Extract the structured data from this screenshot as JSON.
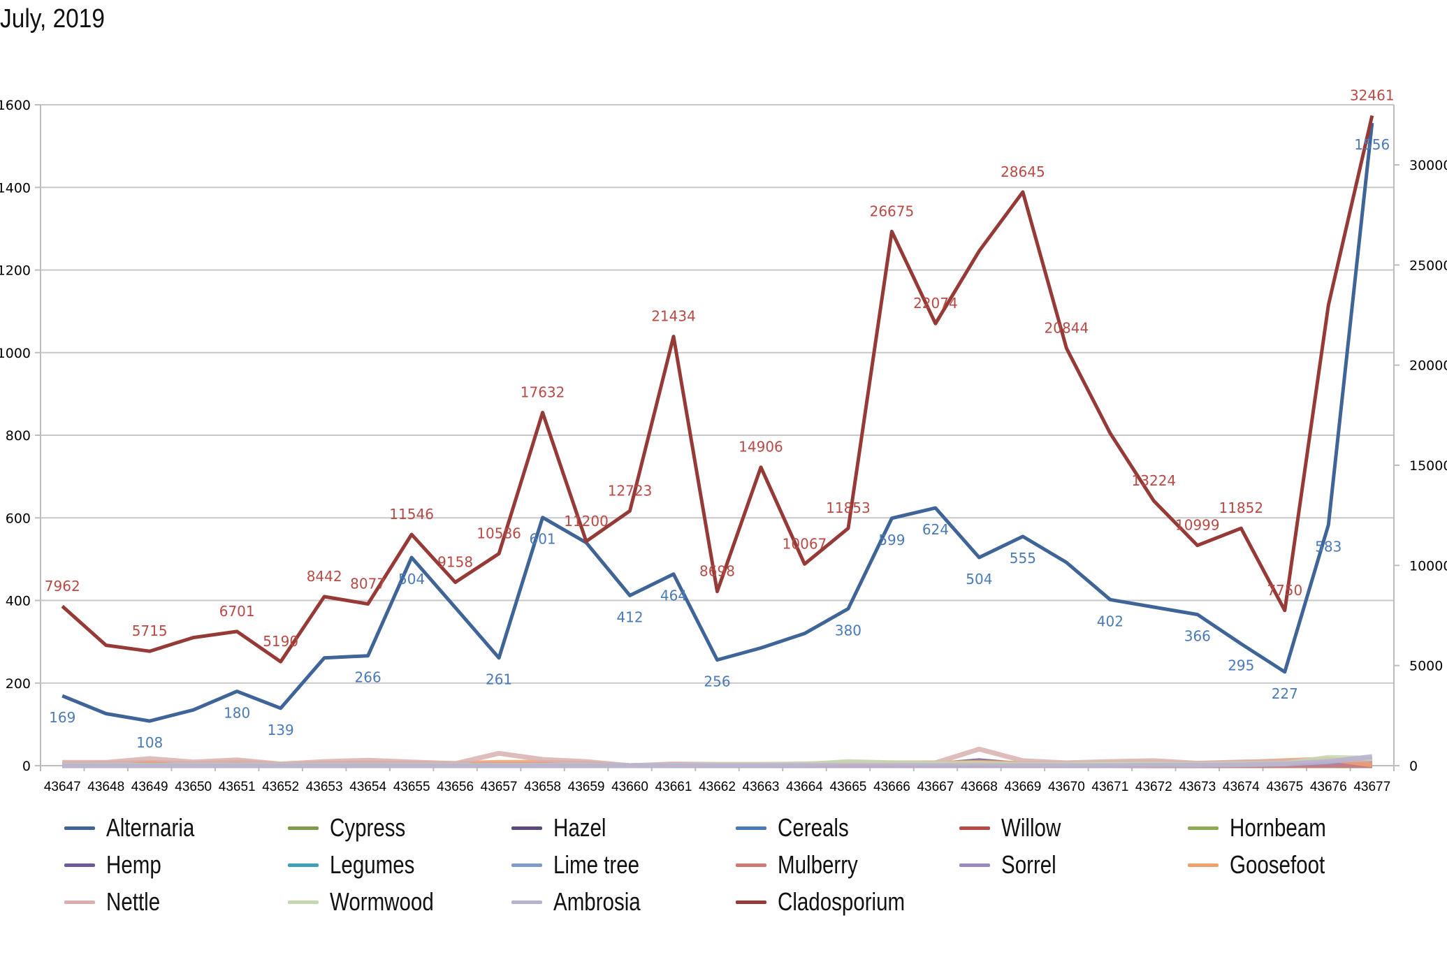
{
  "chart_data": {
    "type": "line",
    "title": "July, 2019",
    "xlabel": "",
    "ylabel": "",
    "y2label": "",
    "categories": [
      "43647",
      "43648",
      "43649",
      "43650",
      "43651",
      "43652",
      "43653",
      "43654",
      "43655",
      "43656",
      "43657",
      "43658",
      "43659",
      "43660",
      "43661",
      "43662",
      "43663",
      "43664",
      "43665",
      "43666",
      "43667",
      "43668",
      "43669",
      "43670",
      "43671",
      "43672",
      "43673",
      "43674",
      "43675",
      "43676",
      "43677"
    ],
    "y_axis": {
      "min": 0,
      "max": 1600,
      "ticks": [
        0,
        200,
        400,
        600,
        800,
        1000,
        1200,
        1400,
        1600
      ]
    },
    "y2_axis": {
      "min": 0,
      "max": 33000,
      "ticks": [
        0,
        5000,
        10000,
        15000,
        20000,
        25000,
        30000
      ]
    },
    "grid": true,
    "legend_position": "bottom",
    "series": [
      {
        "name": "Alternaria",
        "axis": "left",
        "color": "#3f6497",
        "labels": true,
        "label_color": "#4a7ab8",
        "values": [
          169,
          126,
          108,
          135,
          180,
          139,
          261,
          266,
          504,
          383,
          261,
          601,
          540,
          412,
          464,
          256,
          285,
          320,
          380,
          599,
          624,
          504,
          555,
          492,
          402,
          384,
          366,
          295,
          227,
          583,
          1556
        ],
        "label_values": [
          169,
          null,
          108,
          null,
          180,
          139,
          null,
          266,
          504,
          null,
          261,
          601,
          null,
          412,
          464,
          256,
          null,
          null,
          380,
          599,
          624,
          504,
          555,
          null,
          402,
          null,
          366,
          295,
          227,
          583,
          1556
        ]
      },
      {
        "name": "Cypress",
        "axis": "left",
        "color": "#7f9a48",
        "values": [
          2,
          2,
          2,
          2,
          2,
          1,
          1,
          1,
          1,
          1,
          1,
          1,
          1,
          0,
          1,
          1,
          1,
          1,
          2,
          2,
          2,
          2,
          1,
          1,
          1,
          1,
          1,
          1,
          2,
          2,
          2
        ]
      },
      {
        "name": "Hazel",
        "axis": "left",
        "color": "#5a4a7e",
        "values": [
          0,
          0,
          0,
          0,
          0,
          0,
          0,
          0,
          0,
          0,
          0,
          0,
          0,
          0,
          0,
          0,
          0,
          0,
          0,
          0,
          0,
          0,
          0,
          0,
          0,
          0,
          0,
          0,
          0,
          0,
          0
        ]
      },
      {
        "name": "Cereals",
        "axis": "left",
        "color": "#4a7ab8",
        "values": [
          2,
          3,
          3,
          2,
          3,
          1,
          2,
          3,
          2,
          2,
          2,
          2,
          1,
          0,
          1,
          1,
          1,
          1,
          2,
          2,
          2,
          3,
          2,
          2,
          2,
          3,
          2,
          2,
          3,
          3,
          4
        ]
      },
      {
        "name": "Willow",
        "axis": "left",
        "color": "#b84a45",
        "values": [
          1,
          1,
          1,
          1,
          1,
          0,
          1,
          1,
          1,
          0,
          1,
          1,
          1,
          0,
          0,
          0,
          0,
          0,
          1,
          1,
          1,
          2,
          1,
          1,
          1,
          1,
          1,
          1,
          1,
          2,
          8
        ]
      },
      {
        "name": "Hornbeam",
        "axis": "left",
        "color": "#8faa55",
        "values": [
          0,
          0,
          0,
          0,
          0,
          0,
          0,
          0,
          0,
          0,
          0,
          0,
          0,
          0,
          0,
          0,
          0,
          0,
          0,
          0,
          0,
          0,
          0,
          0,
          0,
          0,
          0,
          0,
          0,
          0,
          0
        ]
      },
      {
        "name": "Hemp",
        "axis": "left",
        "color": "#6e5a96",
        "values": [
          2,
          2,
          3,
          2,
          4,
          1,
          3,
          4,
          3,
          2,
          2,
          3,
          3,
          0,
          1,
          1,
          1,
          1,
          3,
          3,
          3,
          12,
          3,
          2,
          3,
          3,
          2,
          3,
          3,
          5,
          14
        ]
      },
      {
        "name": "Legumes",
        "axis": "left",
        "color": "#3fa0b8",
        "values": [
          0,
          0,
          0,
          0,
          0,
          0,
          0,
          0,
          0,
          0,
          0,
          0,
          0,
          0,
          0,
          0,
          0,
          0,
          0,
          0,
          0,
          0,
          0,
          0,
          0,
          0,
          0,
          0,
          0,
          0,
          0
        ]
      },
      {
        "name": "Lime tree",
        "axis": "left",
        "color": "#7f9cc8",
        "values": [
          1,
          1,
          1,
          1,
          1,
          0,
          1,
          1,
          1,
          1,
          1,
          1,
          1,
          0,
          0,
          0,
          0,
          0,
          1,
          1,
          1,
          1,
          1,
          1,
          1,
          1,
          1,
          1,
          1,
          1,
          2
        ]
      },
      {
        "name": "Mulberry",
        "axis": "left",
        "color": "#d07a75",
        "values": [
          0,
          0,
          0,
          0,
          0,
          0,
          0,
          0,
          0,
          0,
          0,
          0,
          0,
          0,
          0,
          0,
          0,
          0,
          0,
          0,
          0,
          0,
          0,
          0,
          0,
          0,
          0,
          0,
          0,
          0,
          0
        ]
      },
      {
        "name": "Sorrel",
        "axis": "left",
        "color": "#9a8abf",
        "values": [
          3,
          3,
          4,
          3,
          4,
          2,
          3,
          4,
          3,
          3,
          3,
          3,
          3,
          0,
          2,
          2,
          2,
          2,
          4,
          4,
          4,
          6,
          4,
          3,
          4,
          4,
          3,
          4,
          5,
          8,
          14
        ]
      },
      {
        "name": "Goosefoot",
        "axis": "left",
        "color": "#f0a070",
        "values": [
          5,
          6,
          8,
          5,
          9,
          3,
          6,
          7,
          6,
          5,
          8,
          8,
          6,
          0,
          3,
          3,
          3,
          3,
          5,
          5,
          6,
          8,
          5,
          5,
          6,
          7,
          5,
          8,
          12,
          16,
          2
        ]
      },
      {
        "name": "Nettle",
        "axis": "left",
        "color": "#d8b0b0",
        "values": [
          8,
          8,
          17,
          9,
          14,
          4,
          10,
          13,
          9,
          5,
          30,
          15,
          10,
          0,
          4,
          3,
          3,
          4,
          8,
          7,
          7,
          40,
          12,
          7,
          10,
          12,
          6,
          9,
          10,
          13,
          15
        ]
      },
      {
        "name": "Wormwood",
        "axis": "left",
        "color": "#c5d8b0",
        "values": [
          1,
          1,
          1,
          1,
          1,
          1,
          1,
          1,
          1,
          1,
          1,
          1,
          1,
          0,
          1,
          2,
          2,
          3,
          10,
          7,
          5,
          6,
          3,
          3,
          4,
          4,
          3,
          4,
          5,
          20,
          18
        ]
      },
      {
        "name": "Ambrosia",
        "axis": "left",
        "color": "#b8b2d2",
        "values": [
          0,
          0,
          0,
          0,
          0,
          0,
          0,
          0,
          0,
          0,
          0,
          0,
          0,
          0,
          0,
          0,
          0,
          0,
          0,
          0,
          0,
          0,
          0,
          0,
          0,
          1,
          1,
          2,
          4,
          10,
          22
        ]
      },
      {
        "name": "Cladosporium",
        "axis": "right",
        "color": "#963a37",
        "labels": true,
        "label_color": "#b84a45",
        "values": [
          7962,
          6014,
          5715,
          6396,
          6701,
          5190,
          8442,
          8077,
          11546,
          9158,
          10586,
          17632,
          11200,
          12723,
          21434,
          8698,
          14906,
          10067,
          11853,
          26675,
          22074,
          25700,
          28645,
          20844,
          16600,
          13224,
          10999,
          11852,
          7750,
          23000,
          32461
        ],
        "label_values": [
          7962,
          null,
          5715,
          null,
          6701,
          5190,
          8442,
          8077,
          11546,
          9158,
          10586,
          17632,
          11200,
          12723,
          21434,
          8698,
          14906,
          10067,
          11853,
          26675,
          22074,
          null,
          28645,
          20844,
          null,
          13224,
          10999,
          11852,
          7750,
          null,
          32461
        ]
      }
    ]
  }
}
